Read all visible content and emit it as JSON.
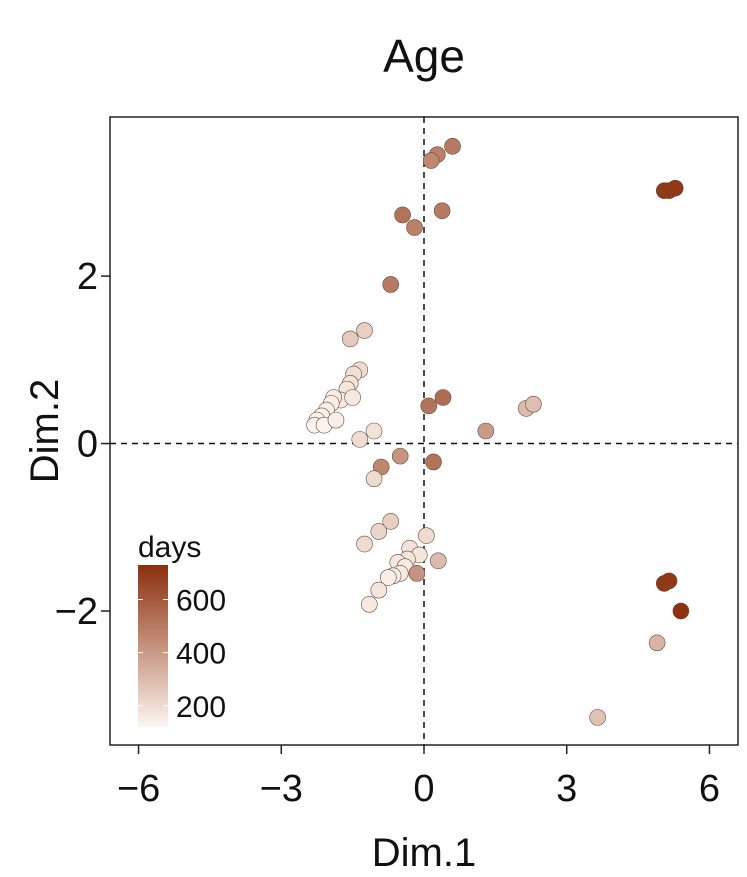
{
  "chart_data": {
    "type": "scatter",
    "title": "Age",
    "xlabel": "Dim.1",
    "ylabel": "Dim.2",
    "xlim": [
      -6.6,
      6.6
    ],
    "ylim": [
      -3.6,
      3.9
    ],
    "xticks": [
      -6,
      -3,
      0,
      3,
      6
    ],
    "xtick_labels": [
      "−6",
      "−3",
      "0",
      "3",
      "6"
    ],
    "yticks": [
      -2,
      0,
      2
    ],
    "ytick_labels": [
      "−2",
      "0",
      "2"
    ],
    "reference_lines": {
      "x": 0,
      "y": 0,
      "style": "dashed"
    },
    "grid": false,
    "color_scale": {
      "title": "days",
      "min": 120,
      "max": 730,
      "ticks": [
        200,
        400,
        600
      ],
      "low_color": "#fdf6f0",
      "high_color": "#8b2e0c",
      "placement": "bottom-left inside"
    },
    "points": [
      {
        "x": 0.6,
        "y": 3.55,
        "days": 500
      },
      {
        "x": 0.28,
        "y": 3.45,
        "days": 480
      },
      {
        "x": 0.15,
        "y": 3.38,
        "days": 460
      },
      {
        "x": 0.38,
        "y": 2.78,
        "days": 500
      },
      {
        "x": -0.45,
        "y": 2.73,
        "days": 520
      },
      {
        "x": -0.2,
        "y": 2.58,
        "days": 480
      },
      {
        "x": -0.7,
        "y": 1.9,
        "days": 500
      },
      {
        "x": 5.05,
        "y": 3.02,
        "days": 700
      },
      {
        "x": 5.15,
        "y": 3.02,
        "days": 700
      },
      {
        "x": 5.28,
        "y": 3.05,
        "days": 700
      },
      {
        "x": -1.25,
        "y": 1.35,
        "days": 240
      },
      {
        "x": -1.55,
        "y": 1.25,
        "days": 250
      },
      {
        "x": -1.35,
        "y": 0.88,
        "days": 200
      },
      {
        "x": -1.48,
        "y": 0.83,
        "days": 190
      },
      {
        "x": -1.55,
        "y": 0.72,
        "days": 180
      },
      {
        "x": -1.62,
        "y": 0.65,
        "days": 170
      },
      {
        "x": -1.75,
        "y": 0.52,
        "days": 160
      },
      {
        "x": -1.9,
        "y": 0.55,
        "days": 150
      },
      {
        "x": -1.95,
        "y": 0.48,
        "days": 140
      },
      {
        "x": -2.05,
        "y": 0.4,
        "days": 140
      },
      {
        "x": -2.15,
        "y": 0.33,
        "days": 130
      },
      {
        "x": -2.25,
        "y": 0.28,
        "days": 130
      },
      {
        "x": -2.3,
        "y": 0.22,
        "days": 130
      },
      {
        "x": -2.1,
        "y": 0.22,
        "days": 130
      },
      {
        "x": -1.85,
        "y": 0.28,
        "days": 140
      },
      {
        "x": -1.5,
        "y": 0.55,
        "days": 160
      },
      {
        "x": -1.05,
        "y": 0.15,
        "days": 180
      },
      {
        "x": -1.35,
        "y": 0.05,
        "days": 200
      },
      {
        "x": 0.1,
        "y": 0.45,
        "days": 520
      },
      {
        "x": 0.4,
        "y": 0.55,
        "days": 540
      },
      {
        "x": 1.3,
        "y": 0.15,
        "days": 400
      },
      {
        "x": 2.15,
        "y": 0.42,
        "days": 300
      },
      {
        "x": 2.3,
        "y": 0.47,
        "days": 290
      },
      {
        "x": -0.5,
        "y": -0.15,
        "days": 420
      },
      {
        "x": -0.9,
        "y": -0.28,
        "days": 460
      },
      {
        "x": 0.2,
        "y": -0.22,
        "days": 520
      },
      {
        "x": -1.05,
        "y": -0.42,
        "days": 200
      },
      {
        "x": -0.7,
        "y": -0.93,
        "days": 240
      },
      {
        "x": -0.95,
        "y": -1.05,
        "days": 220
      },
      {
        "x": -1.25,
        "y": -1.2,
        "days": 200
      },
      {
        "x": 0.05,
        "y": -1.1,
        "days": 200
      },
      {
        "x": -0.3,
        "y": -1.25,
        "days": 180
      },
      {
        "x": -0.1,
        "y": -1.33,
        "days": 170
      },
      {
        "x": -0.35,
        "y": -1.38,
        "days": 170
      },
      {
        "x": -0.55,
        "y": -1.42,
        "days": 160
      },
      {
        "x": -0.4,
        "y": -1.47,
        "days": 150
      },
      {
        "x": -0.5,
        "y": -1.55,
        "days": 150
      },
      {
        "x": -0.65,
        "y": -1.58,
        "days": 140
      },
      {
        "x": -0.75,
        "y": -1.6,
        "days": 140
      },
      {
        "x": -0.15,
        "y": -1.55,
        "days": 420
      },
      {
        "x": 0.3,
        "y": -1.4,
        "days": 300
      },
      {
        "x": -0.95,
        "y": -1.75,
        "days": 170
      },
      {
        "x": -1.15,
        "y": -1.92,
        "days": 160
      },
      {
        "x": 5.05,
        "y": -1.67,
        "days": 700
      },
      {
        "x": 5.15,
        "y": -1.64,
        "days": 700
      },
      {
        "x": 5.4,
        "y": -2.0,
        "days": 720
      },
      {
        "x": 4.9,
        "y": -2.38,
        "days": 320
      },
      {
        "x": 3.65,
        "y": -3.27,
        "days": 280
      }
    ]
  }
}
